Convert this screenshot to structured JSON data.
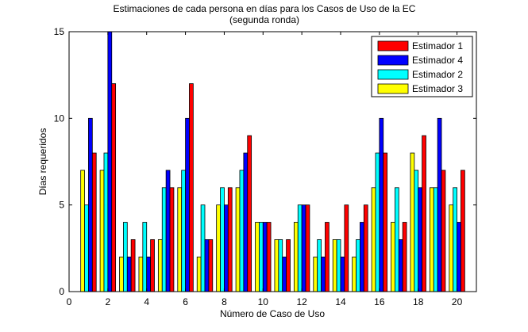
{
  "chart_data": {
    "type": "bar",
    "title": "Estimaciones de cada persona en días para los Casos de Uso de la EC",
    "subtitle": "(segunda ronda)",
    "xlabel": "Número de Caso de Uso",
    "ylabel": "Días requeridos",
    "xlim": [
      0,
      21
    ],
    "ylim": [
      0,
      15
    ],
    "xticks": [
      "0",
      "2",
      "4",
      "6",
      "8",
      "10",
      "12",
      "14",
      "16",
      "18",
      "20"
    ],
    "yticks": [
      "0",
      "5",
      "10",
      "15"
    ],
    "grid": false,
    "legend_position": "top-right",
    "categories": [
      1,
      2,
      3,
      4,
      5,
      6,
      7,
      8,
      9,
      10,
      11,
      12,
      13,
      14,
      15,
      16,
      17,
      18,
      19,
      20
    ],
    "series": [
      {
        "name": "Estimador 3",
        "color": "#ffff00",
        "values": [
          7,
          7,
          2,
          2,
          3,
          6,
          2,
          5,
          6,
          4,
          3,
          4,
          2,
          3,
          2,
          6,
          4,
          8,
          6,
          5
        ]
      },
      {
        "name": "Estimador 2",
        "color": "#00ffff",
        "values": [
          5,
          8,
          4,
          4,
          6,
          7,
          5,
          6,
          7,
          4,
          3,
          5,
          3,
          3,
          3,
          8,
          6,
          7,
          6,
          6
        ]
      },
      {
        "name": "Estimador 4",
        "color": "#0000ff",
        "values": [
          10,
          15,
          2,
          2,
          7,
          10,
          3,
          5,
          8,
          4,
          2,
          5,
          2,
          2,
          4,
          10,
          3,
          6,
          10,
          4
        ]
      },
      {
        "name": "Estimador 1",
        "color": "#ff0000",
        "values": [
          8,
          12,
          3,
          3,
          6,
          12,
          3,
          6,
          9,
          4,
          3,
          5,
          4,
          5,
          5,
          8,
          4,
          9,
          7,
          7
        ]
      }
    ],
    "legend_order": [
      "Estimador 1",
      "Estimador 4",
      "Estimador 2",
      "Estimador 3"
    ]
  }
}
